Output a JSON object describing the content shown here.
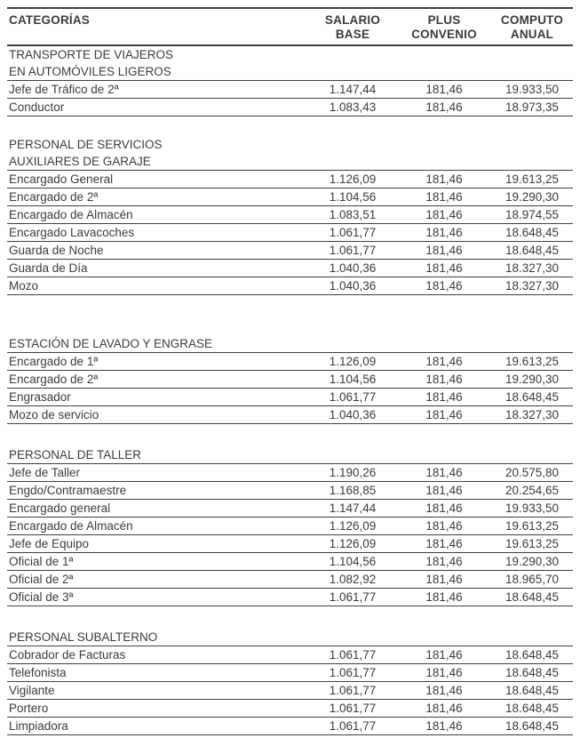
{
  "colors": {
    "text": "#3b3b3b",
    "rule": "#3f3f3f",
    "background": "#ffffff"
  },
  "table": {
    "columns": [
      {
        "line1": "CATEGORÍAS",
        "line2": ""
      },
      {
        "line1": "SALARIO",
        "line2": "BASE"
      },
      {
        "line1": "PLUS",
        "line2": "CONVENIO"
      },
      {
        "line1": "COMPUTO",
        "line2": "ANUAL"
      }
    ],
    "sections": [
      {
        "heading_lines": [
          "TRANSPORTE DE VIAJEROS",
          "EN AUTOMÓVILES LIGEROS"
        ],
        "rows": [
          {
            "category": "Jefe de Tráfico de 2ª",
            "salario_base": "1.147,44",
            "plus_convenio": "181,46",
            "computo_anual": "19.933,50"
          },
          {
            "category": "Conductor",
            "salario_base": "1.083,43",
            "plus_convenio": "181,46",
            "computo_anual": "18.973,35"
          }
        ],
        "gap_after": 22
      },
      {
        "heading_lines": [
          "PERSONAL DE SERVICIOS",
          "AUXILIARES DE GARAJE"
        ],
        "rows": [
          {
            "category": "Encargado General",
            "salario_base": "1.126,09",
            "plus_convenio": "181,46",
            "computo_anual": "19.613,25"
          },
          {
            "category": "Encargado de 2ª",
            "salario_base": "1.104,56",
            "plus_convenio": "181,46",
            "computo_anual": "19.290,30"
          },
          {
            "category": "Encargado de Almacén",
            "salario_base": "1.083,51",
            "plus_convenio": "181,46",
            "computo_anual": "18.974,55"
          },
          {
            "category": "Encargado Lavacoches",
            "salario_base": "1.061,77",
            "plus_convenio": "181,46",
            "computo_anual": "18.648,45"
          },
          {
            "category": "Guarda de Noche",
            "salario_base": "1.061,77",
            "plus_convenio": "181,46",
            "computo_anual": "18.648,45"
          },
          {
            "category": "Guarda de Día",
            "salario_base": "1.040,36",
            "plus_convenio": "181,46",
            "computo_anual": "18.327,30"
          },
          {
            "category": "Mozo",
            "salario_base": "1.040,36",
            "plus_convenio": "181,46",
            "computo_anual": "18.327,30"
          }
        ],
        "gap_after": 46
      },
      {
        "heading_lines": [
          "ESTACIÓN DE LAVADO Y ENGRASE"
        ],
        "rows": [
          {
            "category": "Encargado de 1ª",
            "salario_base": "1.126,09",
            "plus_convenio": "181,46",
            "computo_anual": "19.613,25"
          },
          {
            "category": "Encargado de 2ª",
            "salario_base": "1.104,56",
            "plus_convenio": "181,46",
            "computo_anual": "19.290,30"
          },
          {
            "category": "Engrasador",
            "salario_base": "1.061,77",
            "plus_convenio": "181,46",
            "computo_anual": "18.648,45"
          },
          {
            "category": "Mozo de servicio",
            "salario_base": "1.040,36",
            "plus_convenio": "181,46",
            "computo_anual": "18.327,30"
          }
        ],
        "gap_after": 25
      },
      {
        "heading_lines": [
          "PERSONAL DE TALLER"
        ],
        "rows": [
          {
            "category": "Jefe de Taller",
            "salario_base": "1.190,26",
            "plus_convenio": "181,46",
            "computo_anual": "20.575,80"
          },
          {
            "category": "Engdo/Contramaestre",
            "salario_base": "1.168,85",
            "plus_convenio": "181,46",
            "computo_anual": "20.254,65"
          },
          {
            "category": "Encargado general",
            "salario_base": "1.147,44",
            "plus_convenio": "181,46",
            "computo_anual": "19.933,50"
          },
          {
            "category": "Encargado de Almacén",
            "salario_base": "1.126,09",
            "plus_convenio": "181,46",
            "computo_anual": "19.613,25"
          },
          {
            "category": "Jefe de Equipo",
            "salario_base": "1.126,09",
            "plus_convenio": "181,46",
            "computo_anual": "19.613,25"
          },
          {
            "category": "Oficial de 1ª",
            "salario_base": "1.104,56",
            "plus_convenio": "181,46",
            "computo_anual": "19.290,30"
          },
          {
            "category": "Oficial de 2ª",
            "salario_base": "1.082,92",
            "plus_convenio": "181,46",
            "computo_anual": "18.965,70"
          },
          {
            "category": "Oficial de 3ª",
            "salario_base": "1.061,77",
            "plus_convenio": "181,46",
            "computo_anual": "18.648,45"
          }
        ],
        "gap_after": 26
      },
      {
        "heading_lines": [
          "PERSONAL SUBALTERNO"
        ],
        "rows": [
          {
            "category": "Cobrador de Facturas",
            "salario_base": "1.061,77",
            "plus_convenio": "181,46",
            "computo_anual": "18.648,45"
          },
          {
            "category": "Telefonista",
            "salario_base": "1.061,77",
            "plus_convenio": "181,46",
            "computo_anual": "18.648,45"
          },
          {
            "category": "Vigilante",
            "salario_base": "1.061,77",
            "plus_convenio": "181,46",
            "computo_anual": "18.648,45"
          },
          {
            "category": "Portero",
            "salario_base": "1.061,77",
            "plus_convenio": "181,46",
            "computo_anual": "18.648,45"
          },
          {
            "category": "Limpiadora",
            "salario_base": "1.061,77",
            "plus_convenio": "181,46",
            "computo_anual": "18.648,45"
          }
        ],
        "gap_after": 0
      }
    ]
  }
}
